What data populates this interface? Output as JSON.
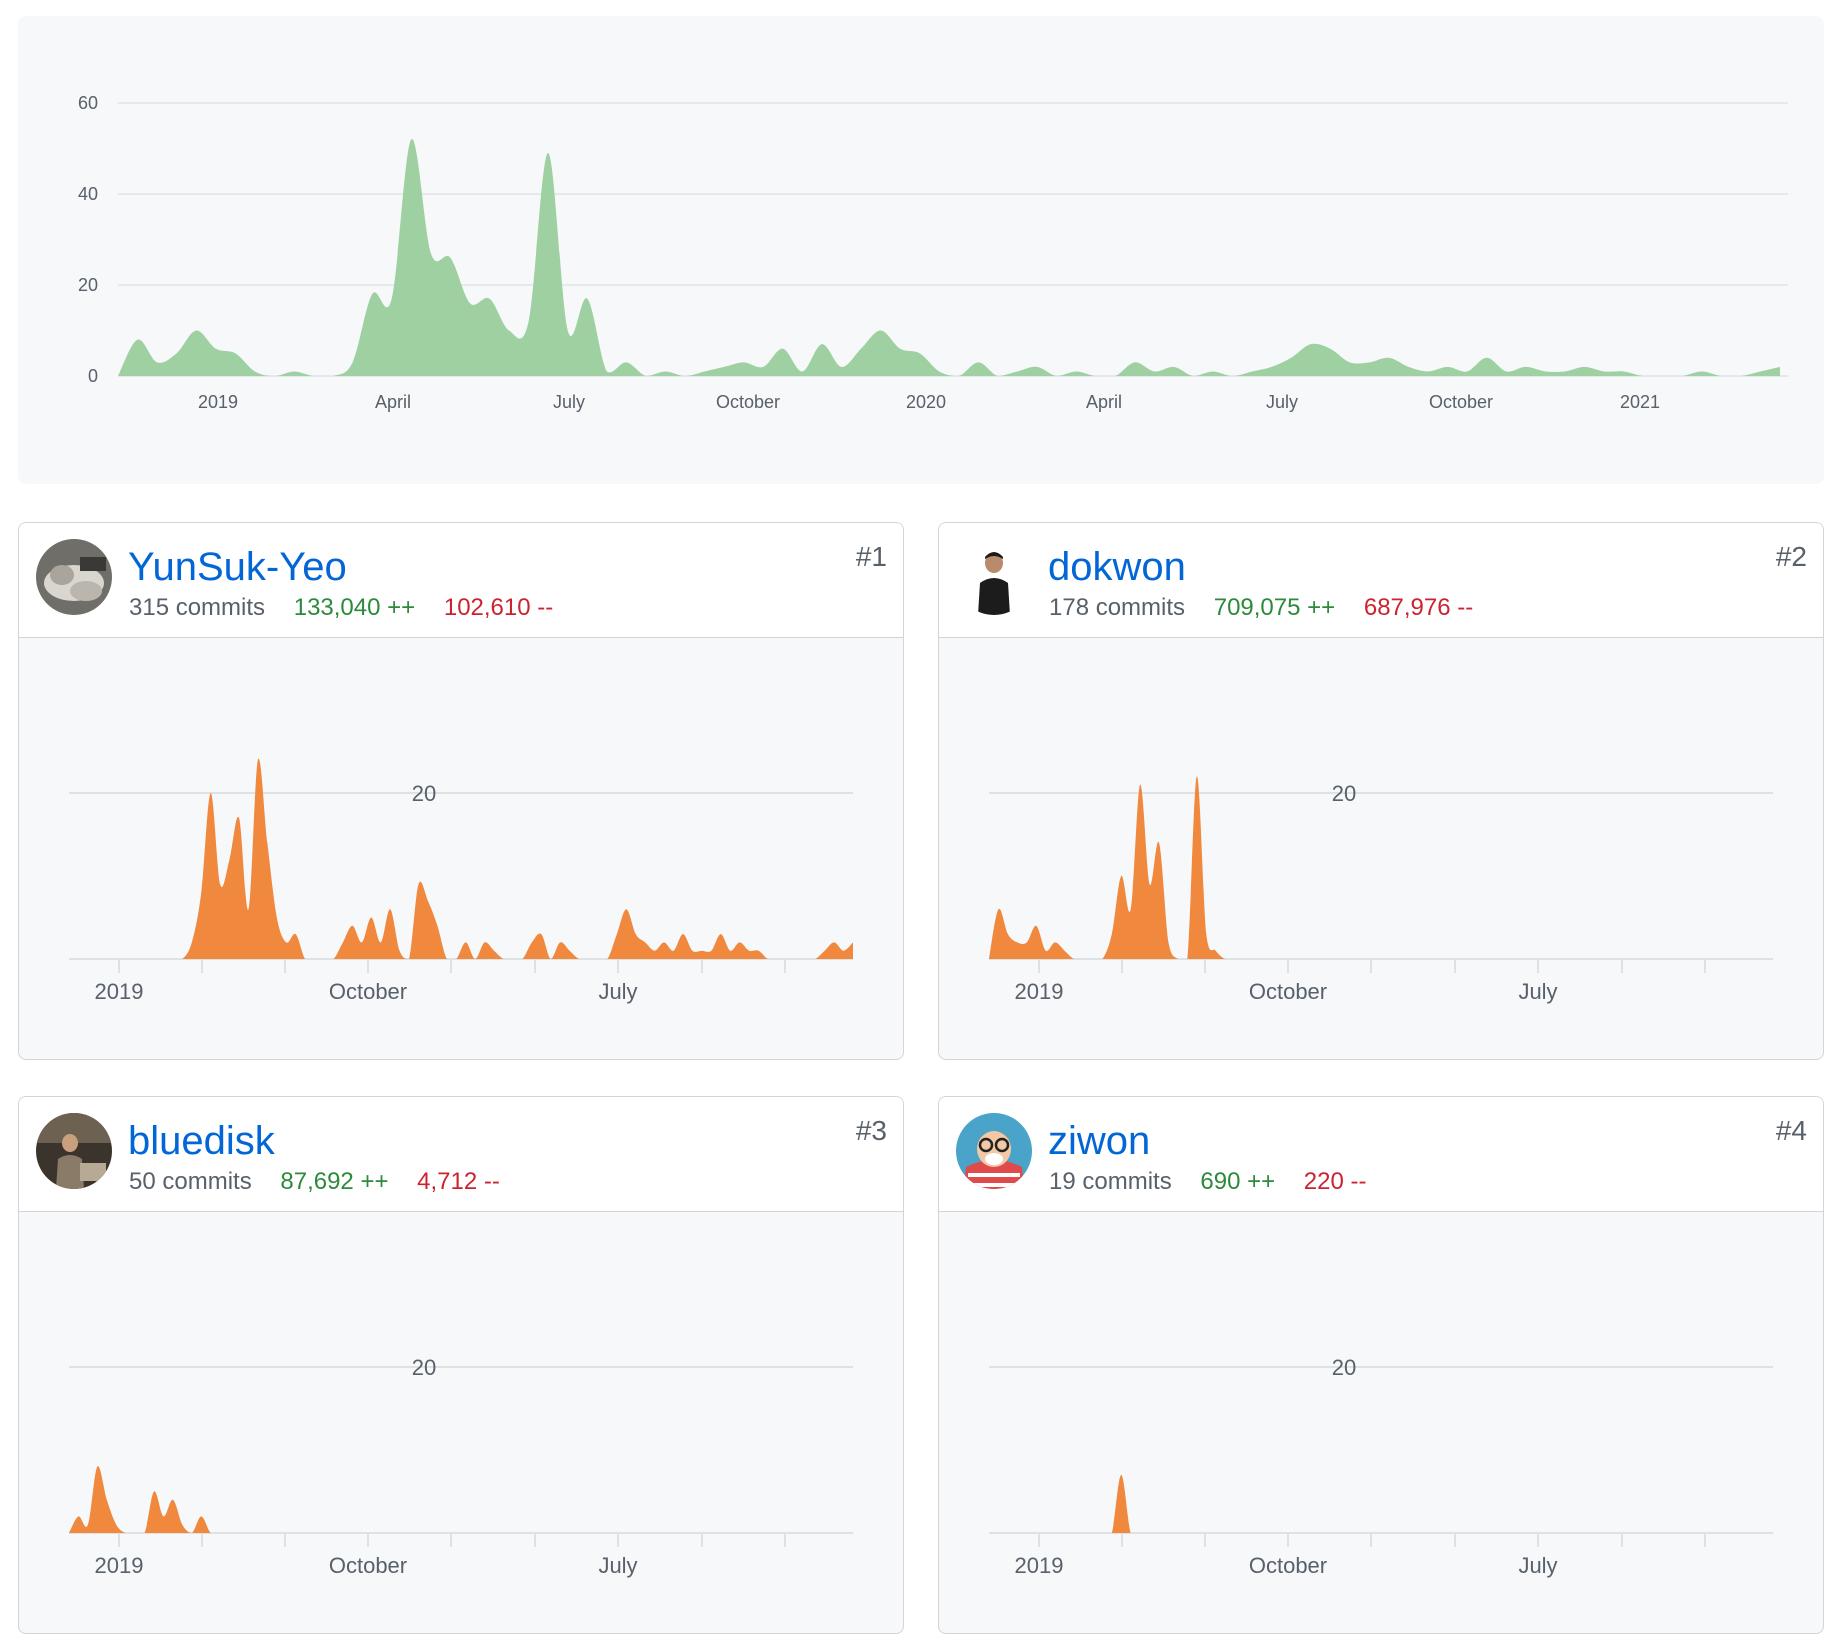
{
  "overview": {
    "chart_data": {
      "type": "area",
      "color": "#9fd0a2",
      "ylim": [
        0,
        60
      ],
      "yticks": [
        "0",
        "20",
        "40",
        "60"
      ],
      "xlabels": [
        "2019",
        "April",
        "July",
        "October",
        "2020",
        "April",
        "July",
        "October",
        "2021"
      ],
      "series": [
        {
          "name": "commits",
          "values": [
            0,
            8,
            3,
            5,
            10,
            6,
            5,
            1,
            0,
            1,
            0,
            0,
            3,
            18,
            17,
            52,
            27,
            26,
            16,
            17,
            10,
            12,
            49,
            10,
            17,
            1,
            3,
            0,
            1,
            0,
            1,
            2,
            3,
            2,
            6,
            1,
            7,
            2,
            6,
            10,
            6,
            5,
            1,
            0,
            3,
            0,
            1,
            2,
            0,
            1,
            0,
            0,
            3,
            1,
            2,
            0,
            1,
            0,
            1,
            2,
            4,
            7,
            6,
            3,
            3,
            4,
            2,
            1,
            2,
            1,
            4,
            1,
            2,
            1,
            1,
            2,
            1,
            1,
            0,
            0,
            0,
            1,
            0,
            0,
            1,
            2
          ]
        }
      ]
    }
  },
  "contributors": [
    {
      "name": "YunSuk-Yeo",
      "rank": "#1",
      "commits": "315 commits",
      "additions": "133,040 ++",
      "deletions": "102,610 --",
      "chart_data": {
        "type": "area",
        "color": "#f0883e",
        "ylim": [
          0,
          20
        ],
        "ytick": "20",
        "xlabels": [
          "2019",
          "October",
          "July"
        ],
        "values": [
          0,
          0,
          0,
          0,
          0,
          0,
          0,
          0,
          0,
          0,
          0,
          0,
          0,
          2,
          8,
          20,
          9,
          12,
          17,
          6,
          24,
          14,
          5,
          2,
          3,
          0,
          0,
          0,
          0,
          2,
          4,
          2,
          5,
          2,
          6,
          1,
          0,
          9,
          7,
          4,
          0,
          0,
          2,
          0,
          2,
          1,
          0,
          0,
          0,
          2,
          3,
          0,
          2,
          1,
          0,
          0,
          0,
          0,
          3,
          6,
          3,
          2,
          1,
          2,
          1,
          3,
          1,
          1,
          1,
          3,
          1,
          2,
          1,
          1,
          0,
          0,
          0,
          0,
          0,
          0,
          1,
          2,
          1,
          2
        ]
      }
    },
    {
      "name": "dokwon",
      "rank": "#2",
      "commits": "178 commits",
      "additions": "709,075 ++",
      "deletions": "687,976 --",
      "chart_data": {
        "type": "area",
        "color": "#f0883e",
        "ylim": [
          0,
          20
        ],
        "ytick": "20",
        "xlabels": [
          "2019",
          "October",
          "July"
        ],
        "values": [
          0,
          6,
          3,
          2,
          2,
          4,
          1,
          2,
          1,
          0,
          0,
          0,
          0,
          3,
          10,
          6,
          21,
          9,
          14,
          2,
          0,
          0,
          22,
          3,
          1,
          0,
          0,
          0,
          0,
          0,
          0,
          0,
          0,
          0,
          0,
          0,
          0,
          0,
          0,
          0,
          0,
          0,
          0,
          0,
          0,
          0,
          0,
          0,
          0,
          0,
          0,
          0,
          0,
          0,
          0,
          0,
          0,
          0,
          0,
          0,
          0,
          0,
          0,
          0,
          0,
          0,
          0,
          0,
          0,
          0,
          0,
          0,
          0,
          0,
          0,
          0,
          0,
          0,
          0,
          0,
          0,
          0,
          0,
          0
        ]
      }
    },
    {
      "name": "bluedisk",
      "rank": "#3",
      "commits": "50 commits",
      "additions": "87,692 ++",
      "deletions": "4,712 --",
      "chart_data": {
        "type": "area",
        "color": "#f0883e",
        "ylim": [
          0,
          20
        ],
        "ytick": "20",
        "xlabels": [
          "2019",
          "October",
          "July"
        ],
        "values": [
          0,
          2,
          1,
          8,
          4,
          1,
          0,
          0,
          0,
          5,
          2,
          4,
          1,
          0,
          2,
          0,
          0,
          0,
          0,
          0,
          0,
          0,
          0,
          0,
          0,
          0,
          0,
          0,
          0,
          0,
          0,
          0,
          0,
          0,
          0,
          0,
          0,
          0,
          0,
          0,
          0,
          0,
          0,
          0,
          0,
          0,
          0,
          0,
          0,
          0,
          0,
          0,
          0,
          0,
          0,
          0,
          0,
          0,
          0,
          0,
          0,
          0,
          0,
          0,
          0,
          0,
          0,
          0,
          0,
          0,
          0,
          0,
          0,
          0,
          0,
          0,
          0,
          0,
          0,
          0,
          0,
          0,
          0,
          0
        ]
      }
    },
    {
      "name": "ziwon",
      "rank": "#4",
      "commits": "19 commits",
      "additions": "690 ++",
      "deletions": "220 --",
      "chart_data": {
        "type": "area",
        "color": "#f0883e",
        "ylim": [
          0,
          20
        ],
        "ytick": "20",
        "xlabels": [
          "2019",
          "October",
          "July"
        ],
        "values": [
          0,
          0,
          0,
          0,
          0,
          0,
          0,
          0,
          0,
          0,
          0,
          0,
          0,
          0,
          7,
          0,
          0,
          0,
          0,
          0,
          0,
          0,
          0,
          0,
          0,
          0,
          0,
          0,
          0,
          0,
          0,
          0,
          0,
          0,
          0,
          0,
          0,
          0,
          0,
          0,
          0,
          0,
          0,
          0,
          0,
          0,
          0,
          0,
          0,
          0,
          0,
          0,
          0,
          0,
          0,
          0,
          0,
          0,
          0,
          0,
          0,
          0,
          0,
          0,
          0,
          0,
          0,
          0,
          0,
          0,
          0,
          0,
          0,
          0,
          0,
          0,
          0,
          0,
          0,
          0,
          0,
          0,
          0,
          0
        ]
      }
    }
  ]
}
